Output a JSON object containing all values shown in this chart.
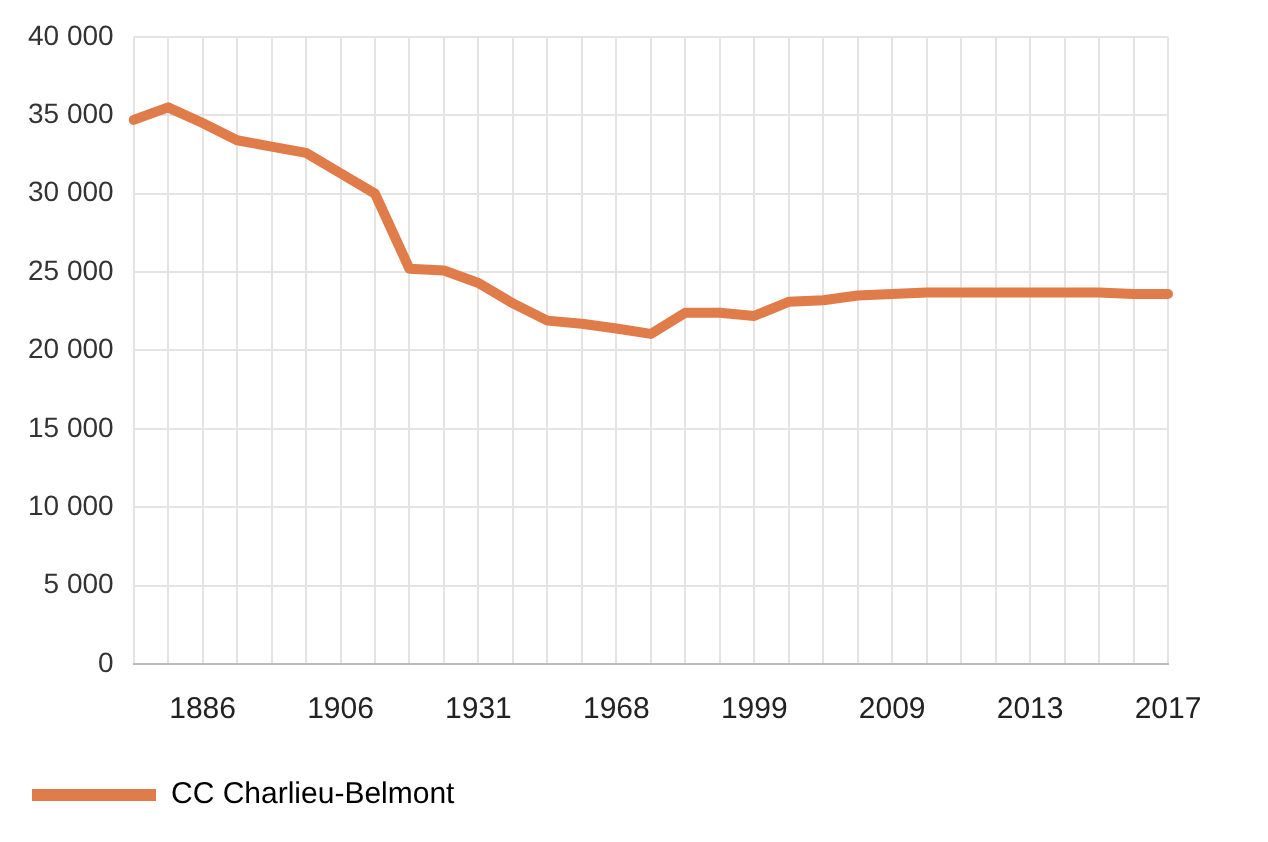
{
  "chart_data": {
    "type": "line",
    "categories": [
      null,
      null,
      "1886",
      null,
      null,
      null,
      "1906",
      null,
      null,
      null,
      "1931",
      null,
      null,
      null,
      "1968",
      null,
      null,
      null,
      "1999",
      null,
      null,
      null,
      "2009",
      null,
      null,
      null,
      "2013",
      null,
      null,
      null,
      "2017"
    ],
    "series": [
      {
        "name": "CC Charlieu-Belmont",
        "color": "#e07b4a",
        "values": [
          34700,
          35500,
          34500,
          33400,
          33000,
          32600,
          31300,
          30000,
          25200,
          25100,
          24300,
          23000,
          21900,
          21700,
          21400,
          21050,
          22400,
          22400,
          22200,
          23100,
          23200,
          23500,
          23600,
          23700,
          23700,
          23700,
          23700,
          23700,
          23700,
          23600,
          23600
        ]
      }
    ],
    "ylim": [
      0,
      40000
    ],
    "yticks": [
      0,
      {
        "value": 5000,
        "label": "5 000"
      },
      {
        "value": 10000,
        "label": "10 000"
      },
      {
        "value": 15000,
        "label": "15 000"
      },
      {
        "value": 20000,
        "label": "20 000"
      },
      {
        "value": 25000,
        "label": "25 000"
      },
      {
        "value": 30000,
        "label": "30 000"
      },
      {
        "value": 35000,
        "label": "35 000"
      },
      {
        "value": 40000,
        "label": "40 000"
      }
    ],
    "grid": true,
    "legend": "bottom",
    "marker": "none",
    "line_style": "solid"
  }
}
